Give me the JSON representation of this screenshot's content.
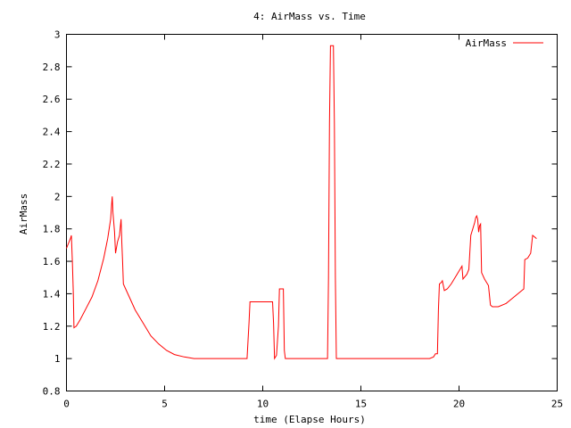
{
  "chart_data": {
    "type": "line",
    "title": "4: AirMass vs. Time",
    "xlabel": "time (Elapse Hours)",
    "ylabel": "AirMass",
    "xlim": [
      0,
      25
    ],
    "ylim": [
      0.8,
      3
    ],
    "xticks": [
      0,
      5,
      10,
      15,
      20,
      25
    ],
    "yticks": [
      0.8,
      1,
      1.2,
      1.4,
      1.6,
      1.8,
      2,
      2.2,
      2.4,
      2.6,
      2.8,
      3
    ],
    "xtick_labels": [
      "0",
      "5",
      "10",
      "15",
      "20",
      "25"
    ],
    "ytick_labels": [
      "0.8",
      "1",
      "1.2",
      "1.4",
      "1.6",
      "1.8",
      "2",
      "2.2",
      "2.4",
      "2.6",
      "2.8",
      "3"
    ],
    "grid": false,
    "legend_position": "top-right",
    "series": [
      {
        "name": "AirMass",
        "color": "#ff0000",
        "points": [
          [
            0.0,
            1.68
          ],
          [
            0.1,
            1.71
          ],
          [
            0.2,
            1.74
          ],
          [
            0.25,
            1.76
          ],
          [
            0.3,
            1.6
          ],
          [
            0.35,
            1.4
          ],
          [
            0.38,
            1.19
          ],
          [
            0.5,
            1.2
          ],
          [
            0.7,
            1.24
          ],
          [
            1.0,
            1.31
          ],
          [
            1.3,
            1.38
          ],
          [
            1.6,
            1.48
          ],
          [
            1.9,
            1.62
          ],
          [
            2.1,
            1.74
          ],
          [
            2.25,
            1.86
          ],
          [
            2.3,
            1.95
          ],
          [
            2.33,
            2.0
          ],
          [
            2.37,
            1.9
          ],
          [
            2.45,
            1.78
          ],
          [
            2.5,
            1.65
          ],
          [
            2.6,
            1.72
          ],
          [
            2.7,
            1.76
          ],
          [
            2.78,
            1.86
          ],
          [
            2.82,
            1.72
          ],
          [
            2.86,
            1.6
          ],
          [
            2.9,
            1.46
          ],
          [
            3.2,
            1.38
          ],
          [
            3.5,
            1.3
          ],
          [
            3.9,
            1.22
          ],
          [
            4.3,
            1.14
          ],
          [
            4.7,
            1.09
          ],
          [
            5.1,
            1.05
          ],
          [
            5.5,
            1.025
          ],
          [
            6.0,
            1.01
          ],
          [
            6.5,
            1.0
          ],
          [
            9.2,
            1.0
          ],
          [
            9.3,
            1.22
          ],
          [
            9.35,
            1.35
          ],
          [
            10.5,
            1.35
          ],
          [
            10.55,
            1.22
          ],
          [
            10.6,
            1.0
          ],
          [
            10.7,
            1.02
          ],
          [
            10.8,
            1.2
          ],
          [
            10.85,
            1.43
          ],
          [
            11.05,
            1.43
          ],
          [
            11.1,
            1.05
          ],
          [
            11.15,
            1.0
          ],
          [
            13.3,
            1.0
          ],
          [
            13.35,
            1.5
          ],
          [
            13.4,
            2.45
          ],
          [
            13.45,
            2.93
          ],
          [
            13.6,
            2.93
          ],
          [
            13.65,
            2.45
          ],
          [
            13.7,
            1.5
          ],
          [
            13.75,
            1.0
          ],
          [
            18.5,
            1.0
          ],
          [
            18.7,
            1.01
          ],
          [
            18.8,
            1.03
          ],
          [
            18.9,
            1.03
          ],
          [
            18.95,
            1.3
          ],
          [
            19.0,
            1.46
          ],
          [
            19.1,
            1.47
          ],
          [
            19.15,
            1.48
          ],
          [
            19.25,
            1.42
          ],
          [
            19.4,
            1.43
          ],
          [
            19.6,
            1.46
          ],
          [
            19.9,
            1.52
          ],
          [
            20.1,
            1.56
          ],
          [
            20.15,
            1.57
          ],
          [
            20.2,
            1.49
          ],
          [
            20.4,
            1.52
          ],
          [
            20.5,
            1.55
          ],
          [
            20.6,
            1.76
          ],
          [
            20.8,
            1.84
          ],
          [
            20.85,
            1.87
          ],
          [
            20.9,
            1.88
          ],
          [
            20.95,
            1.86
          ],
          [
            21.0,
            1.78
          ],
          [
            21.05,
            1.82
          ],
          [
            21.1,
            1.83
          ],
          [
            21.15,
            1.53
          ],
          [
            21.3,
            1.49
          ],
          [
            21.5,
            1.45
          ],
          [
            21.6,
            1.33
          ],
          [
            21.7,
            1.32
          ],
          [
            22.0,
            1.32
          ],
          [
            22.4,
            1.34
          ],
          [
            22.7,
            1.37
          ],
          [
            23.1,
            1.41
          ],
          [
            23.3,
            1.43
          ],
          [
            23.35,
            1.61
          ],
          [
            23.5,
            1.62
          ],
          [
            23.65,
            1.65
          ],
          [
            23.75,
            1.76
          ],
          [
            23.85,
            1.75
          ],
          [
            23.95,
            1.74
          ]
        ]
      }
    ]
  }
}
